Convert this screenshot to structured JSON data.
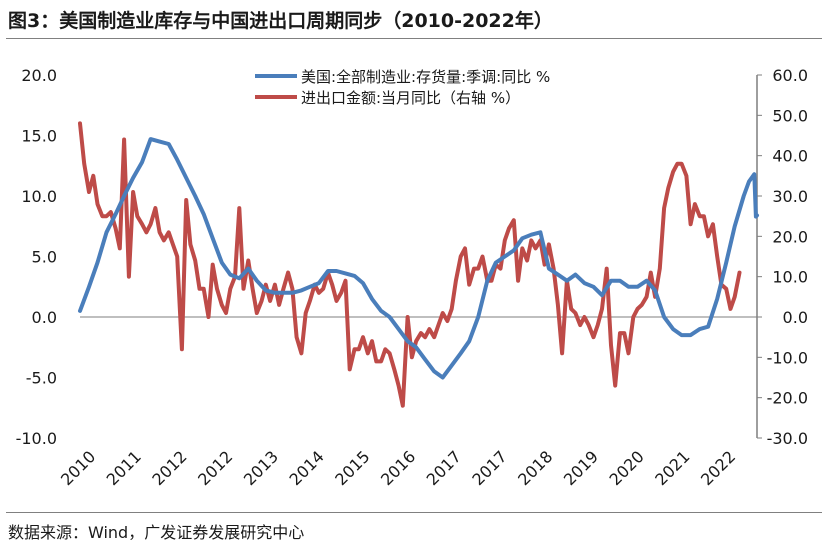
{
  "figure": {
    "title": "图3：美国制造业库存与中国进出口周期同步（2010-2022年）",
    "source": "数据来源：Wind，广发证券发展研究中心"
  },
  "colors": {
    "blue_series": "#4A7EBB",
    "red_series": "#BE4B48",
    "axis": "#7F7F7F",
    "text": "#1a1a1a"
  },
  "chart_data": {
    "type": "line",
    "x_tick_labels": [
      "2010",
      "2011",
      "2012",
      "2012",
      "2013",
      "2014",
      "2015",
      "2016",
      "2017",
      "2017",
      "2018",
      "2019",
      "2020",
      "2021",
      "2022"
    ],
    "x_range": [
      2010.0,
      2022.75
    ],
    "y_left": {
      "ticks": [
        "20.0",
        "15.0",
        "10.0",
        "5.0",
        "0.0",
        "-5.0",
        "-10.0"
      ],
      "range": [
        -10,
        20
      ]
    },
    "y_right": {
      "ticks": [
        "60.0",
        "50.0",
        "40.0",
        "30.0",
        "20.0",
        "10.0",
        "0.0",
        "-10.0",
        "-20.0",
        "-30.0"
      ],
      "range": [
        -30,
        60
      ]
    },
    "grid": false,
    "legend_position": "top-center",
    "series": [
      {
        "name": "美国:全部制造业:存货量:季调:同比 %",
        "axis": "left",
        "color": "#4A7EBB",
        "points": [
          [
            2010.0,
            0.5
          ],
          [
            2010.17,
            2.5
          ],
          [
            2010.33,
            4.5
          ],
          [
            2010.5,
            7.0
          ],
          [
            2010.67,
            8.5
          ],
          [
            2010.83,
            10.0
          ],
          [
            2011.0,
            11.5
          ],
          [
            2011.17,
            12.8
          ],
          [
            2011.33,
            14.7
          ],
          [
            2011.5,
            14.5
          ],
          [
            2011.67,
            14.3
          ],
          [
            2011.83,
            13.0
          ],
          [
            2012.0,
            11.5
          ],
          [
            2012.17,
            10.0
          ],
          [
            2012.33,
            8.5
          ],
          [
            2012.5,
            6.5
          ],
          [
            2012.67,
            4.5
          ],
          [
            2012.83,
            3.5
          ],
          [
            2013.0,
            3.2
          ],
          [
            2013.17,
            4.0
          ],
          [
            2013.33,
            3.0
          ],
          [
            2013.5,
            2.2
          ],
          [
            2013.67,
            2.0
          ],
          [
            2013.83,
            2.0
          ],
          [
            2014.0,
            2.0
          ],
          [
            2014.17,
            2.2
          ],
          [
            2014.33,
            2.5
          ],
          [
            2014.5,
            2.8
          ],
          [
            2014.67,
            3.8
          ],
          [
            2014.83,
            3.8
          ],
          [
            2015.0,
            3.6
          ],
          [
            2015.17,
            3.4
          ],
          [
            2015.33,
            2.8
          ],
          [
            2015.5,
            1.5
          ],
          [
            2015.67,
            0.5
          ],
          [
            2015.83,
            0.0
          ],
          [
            2016.0,
            -1.0
          ],
          [
            2016.17,
            -2.0
          ],
          [
            2016.33,
            -2.5
          ],
          [
            2016.5,
            -3.5
          ],
          [
            2016.67,
            -4.5
          ],
          [
            2016.83,
            -5.0
          ],
          [
            2017.0,
            -4.0
          ],
          [
            2017.17,
            -3.0
          ],
          [
            2017.33,
            -2.0
          ],
          [
            2017.5,
            0.0
          ],
          [
            2017.67,
            3.0
          ],
          [
            2017.83,
            4.5
          ],
          [
            2018.0,
            5.0
          ],
          [
            2018.17,
            5.5
          ],
          [
            2018.33,
            6.5
          ],
          [
            2018.5,
            6.8
          ],
          [
            2018.67,
            7.0
          ],
          [
            2018.83,
            4.0
          ],
          [
            2019.0,
            3.5
          ],
          [
            2019.17,
            3.0
          ],
          [
            2019.33,
            3.5
          ],
          [
            2019.5,
            2.8
          ],
          [
            2019.67,
            2.5
          ],
          [
            2019.83,
            1.8
          ],
          [
            2020.0,
            3.0
          ],
          [
            2020.17,
            3.0
          ],
          [
            2020.33,
            2.5
          ],
          [
            2020.5,
            2.5
          ],
          [
            2020.67,
            3.0
          ],
          [
            2020.83,
            2.2
          ],
          [
            2021.0,
            0.0
          ],
          [
            2021.17,
            -1.0
          ],
          [
            2021.33,
            -1.5
          ],
          [
            2021.5,
            -1.5
          ],
          [
            2021.67,
            -1.0
          ],
          [
            2021.83,
            -0.8
          ],
          [
            2022.0,
            1.5
          ],
          [
            2022.17,
            4.5
          ],
          [
            2022.33,
            7.5
          ],
          [
            2022.5,
            10.0
          ],
          [
            2022.6,
            11.2
          ],
          [
            2022.7,
            11.8
          ],
          [
            2022.73,
            8.3
          ],
          [
            2022.75,
            8.4
          ]
        ]
      },
      {
        "name": "进出口金额:当月同比（右轴 %）",
        "axis": "right",
        "color": "#BE4B48",
        "points": [
          [
            2010.0,
            48
          ],
          [
            2010.08,
            38
          ],
          [
            2010.17,
            31
          ],
          [
            2010.25,
            35
          ],
          [
            2010.33,
            28
          ],
          [
            2010.42,
            25
          ],
          [
            2010.5,
            25
          ],
          [
            2010.58,
            26
          ],
          [
            2010.67,
            22
          ],
          [
            2010.75,
            17
          ],
          [
            2010.83,
            44
          ],
          [
            2010.92,
            10
          ],
          [
            2011.0,
            31
          ],
          [
            2011.08,
            25
          ],
          [
            2011.17,
            23
          ],
          [
            2011.25,
            21
          ],
          [
            2011.33,
            23
          ],
          [
            2011.42,
            27
          ],
          [
            2011.5,
            21
          ],
          [
            2011.58,
            19
          ],
          [
            2011.67,
            21
          ],
          [
            2011.75,
            18
          ],
          [
            2011.83,
            15
          ],
          [
            2011.92,
            -8
          ],
          [
            2012.0,
            29
          ],
          [
            2012.08,
            18
          ],
          [
            2012.17,
            14
          ],
          [
            2012.25,
            7
          ],
          [
            2012.33,
            7
          ],
          [
            2012.42,
            0
          ],
          [
            2012.5,
            13
          ],
          [
            2012.58,
            7
          ],
          [
            2012.67,
            3
          ],
          [
            2012.75,
            1
          ],
          [
            2012.83,
            7
          ],
          [
            2012.92,
            10
          ],
          [
            2013.0,
            27
          ],
          [
            2013.08,
            7
          ],
          [
            2013.17,
            14
          ],
          [
            2013.25,
            7
          ],
          [
            2013.33,
            1
          ],
          [
            2013.42,
            4
          ],
          [
            2013.5,
            8
          ],
          [
            2013.58,
            4
          ],
          [
            2013.67,
            8
          ],
          [
            2013.75,
            3
          ],
          [
            2013.83,
            7
          ],
          [
            2013.92,
            11
          ],
          [
            2014.0,
            7
          ],
          [
            2014.08,
            -5
          ],
          [
            2014.17,
            -9
          ],
          [
            2014.25,
            1
          ],
          [
            2014.33,
            4
          ],
          [
            2014.42,
            8
          ],
          [
            2014.5,
            6
          ],
          [
            2014.58,
            7
          ],
          [
            2014.67,
            11
          ],
          [
            2014.75,
            8
          ],
          [
            2014.83,
            4
          ],
          [
            2014.92,
            6
          ],
          [
            2015.0,
            9
          ],
          [
            2015.08,
            -13
          ],
          [
            2015.17,
            -8
          ],
          [
            2015.25,
            -8
          ],
          [
            2015.33,
            -5
          ],
          [
            2015.42,
            -9
          ],
          [
            2015.5,
            -6
          ],
          [
            2015.58,
            -11
          ],
          [
            2015.67,
            -11
          ],
          [
            2015.75,
            -8
          ],
          [
            2015.83,
            -9
          ],
          [
            2015.92,
            -13
          ],
          [
            2016.0,
            -17
          ],
          [
            2016.08,
            -22
          ],
          [
            2016.17,
            0
          ],
          [
            2016.25,
            -10
          ],
          [
            2016.33,
            -6
          ],
          [
            2016.42,
            -4
          ],
          [
            2016.5,
            -5
          ],
          [
            2016.58,
            -3
          ],
          [
            2016.67,
            -5
          ],
          [
            2016.75,
            -2
          ],
          [
            2016.83,
            1
          ],
          [
            2016.92,
            -1
          ],
          [
            2017.0,
            2
          ],
          [
            2017.08,
            9
          ],
          [
            2017.17,
            15
          ],
          [
            2017.25,
            17
          ],
          [
            2017.33,
            8
          ],
          [
            2017.42,
            12
          ],
          [
            2017.5,
            12
          ],
          [
            2017.58,
            15
          ],
          [
            2017.67,
            9
          ],
          [
            2017.75,
            9
          ],
          [
            2017.83,
            13
          ],
          [
            2017.92,
            12
          ],
          [
            2018.0,
            19
          ],
          [
            2018.08,
            22
          ],
          [
            2018.17,
            24
          ],
          [
            2018.25,
            9
          ],
          [
            2018.33,
            17
          ],
          [
            2018.42,
            14
          ],
          [
            2018.5,
            19
          ],
          [
            2018.58,
            17
          ],
          [
            2018.67,
            19
          ],
          [
            2018.75,
            13
          ],
          [
            2018.83,
            18
          ],
          [
            2018.92,
            12
          ],
          [
            2019.0,
            3
          ],
          [
            2019.08,
            -9
          ],
          [
            2019.17,
            9
          ],
          [
            2019.25,
            2
          ],
          [
            2019.33,
            1
          ],
          [
            2019.42,
            -2
          ],
          [
            2019.5,
            0
          ],
          [
            2019.58,
            -2
          ],
          [
            2019.67,
            -5
          ],
          [
            2019.75,
            -2
          ],
          [
            2019.83,
            2
          ],
          [
            2019.92,
            12
          ],
          [
            2020.0,
            -7
          ],
          [
            2020.08,
            -17
          ],
          [
            2020.17,
            -4
          ],
          [
            2020.25,
            -4
          ],
          [
            2020.33,
            -9
          ],
          [
            2020.42,
            0
          ],
          [
            2020.5,
            2
          ],
          [
            2020.58,
            3
          ],
          [
            2020.67,
            5
          ],
          [
            2020.75,
            11
          ],
          [
            2020.83,
            5
          ],
          [
            2020.92,
            12
          ],
          [
            2021.0,
            27
          ],
          [
            2021.08,
            32
          ],
          [
            2021.17,
            36
          ],
          [
            2021.25,
            38
          ],
          [
            2021.33,
            38
          ],
          [
            2021.42,
            35
          ],
          [
            2021.5,
            23
          ],
          [
            2021.58,
            28
          ],
          [
            2021.67,
            25
          ],
          [
            2021.75,
            25
          ],
          [
            2021.83,
            20
          ],
          [
            2021.92,
            23
          ],
          [
            2022.0,
            15
          ],
          [
            2022.08,
            8
          ],
          [
            2022.17,
            7
          ],
          [
            2022.25,
            2
          ],
          [
            2022.33,
            5
          ],
          [
            2022.42,
            11
          ]
        ]
      }
    ]
  }
}
